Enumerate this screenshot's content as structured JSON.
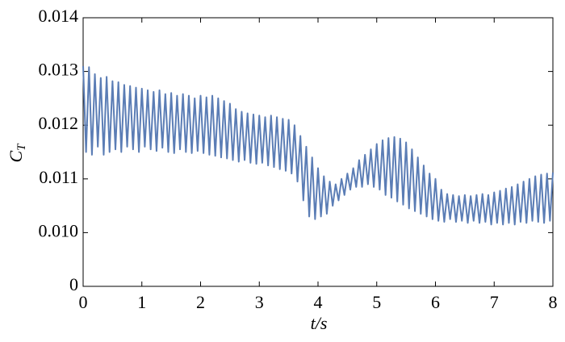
{
  "chart_data": {
    "type": "line",
    "ylabel": "C",
    "ylabel_subscript": "T",
    "xlabel": "t/s",
    "xlim": [
      0,
      8
    ],
    "xticks": [
      0,
      1,
      2,
      3,
      4,
      5,
      6,
      7,
      8
    ],
    "ylim": [
      0,
      0.014
    ],
    "yticks": [
      0,
      {
        "value": 0.01,
        "label": "0.010"
      },
      0.011,
      0.012,
      0.013,
      0.014
    ],
    "grid": false,
    "x": [
      0,
      0.05,
      0.1,
      0.15,
      0.2,
      0.25,
      0.3,
      0.35,
      0.4,
      0.45,
      0.5,
      0.55,
      0.6,
      0.65,
      0.7,
      0.75,
      0.8,
      0.85,
      0.9,
      0.95,
      1,
      1.05,
      1.1,
      1.15,
      1.2,
      1.25,
      1.3,
      1.35,
      1.4,
      1.45,
      1.5,
      1.55,
      1.6,
      1.65,
      1.7,
      1.75,
      1.8,
      1.85,
      1.9,
      1.95,
      2,
      2.05,
      2.1,
      2.15,
      2.2,
      2.25,
      2.3,
      2.35,
      2.4,
      2.45,
      2.5,
      2.55,
      2.6,
      2.65,
      2.7,
      2.75,
      2.8,
      2.85,
      2.9,
      2.95,
      3,
      3.05,
      3.1,
      3.15,
      3.2,
      3.25,
      3.3,
      3.35,
      3.4,
      3.45,
      3.5,
      3.55,
      3.6,
      3.65,
      3.7,
      3.75,
      3.8,
      3.85,
      3.9,
      3.95,
      4,
      4.05,
      4.1,
      4.15,
      4.2,
      4.25,
      4.3,
      4.35,
      4.4,
      4.45,
      4.5,
      4.55,
      4.6,
      4.65,
      4.7,
      4.75,
      4.8,
      4.85,
      4.9,
      4.95,
      5,
      5.05,
      5.1,
      5.15,
      5.2,
      5.25,
      5.3,
      5.35,
      5.4,
      5.45,
      5.5,
      5.55,
      5.6,
      5.65,
      5.7,
      5.75,
      5.8,
      5.85,
      5.9,
      5.95,
      6,
      6.05,
      6.1,
      6.15,
      6.2,
      6.25,
      6.3,
      6.35,
      6.4,
      6.45,
      6.5,
      6.55,
      6.6,
      6.65,
      6.7,
      6.75,
      6.8,
      6.85,
      6.9,
      6.95,
      7,
      7.05,
      7.1,
      7.15,
      7.2,
      7.25,
      7.3,
      7.35,
      7.4,
      7.45,
      7.5,
      7.55,
      7.6,
      7.65,
      7.7,
      7.75,
      7.8,
      7.85,
      7.9,
      7.95,
      8
    ],
    "series": [
      {
        "color": "#5b7db5",
        "values": [
          0.0131,
          0.0115,
          0.01308,
          0.01145,
          0.01295,
          0.0116,
          0.01288,
          0.01145,
          0.0129,
          0.0115,
          0.01282,
          0.01155,
          0.0128,
          0.0115,
          0.01275,
          0.0116,
          0.01273,
          0.01155,
          0.0127,
          0.0115,
          0.01268,
          0.0116,
          0.01265,
          0.01155,
          0.01262,
          0.01152,
          0.01265,
          0.01158,
          0.01258,
          0.0115,
          0.0126,
          0.01148,
          0.01255,
          0.01155,
          0.01258,
          0.0115,
          0.01255,
          0.01148,
          0.0125,
          0.01152,
          0.01255,
          0.01148,
          0.01252,
          0.01145,
          0.01255,
          0.01143,
          0.0125,
          0.0114,
          0.01245,
          0.01138,
          0.0124,
          0.01135,
          0.0123,
          0.01132,
          0.01225,
          0.01135,
          0.01222,
          0.0113,
          0.0122,
          0.01128,
          0.01218,
          0.0113,
          0.01215,
          0.01125,
          0.01218,
          0.01122,
          0.01215,
          0.01118,
          0.01212,
          0.01115,
          0.0121,
          0.0111,
          0.012,
          0.01095,
          0.0118,
          0.0106,
          0.0116,
          0.0103,
          0.0114,
          0.01025,
          0.0112,
          0.0103,
          0.01105,
          0.01035,
          0.01095,
          0.0105,
          0.0109,
          0.0106,
          0.011,
          0.0107,
          0.0111,
          0.0108,
          0.0112,
          0.01085,
          0.01135,
          0.01085,
          0.01145,
          0.0109,
          0.01155,
          0.01085,
          0.01165,
          0.0108,
          0.01172,
          0.0107,
          0.01176,
          0.01065,
          0.01178,
          0.01058,
          0.01175,
          0.01052,
          0.01168,
          0.01045,
          0.01155,
          0.0104,
          0.0114,
          0.01035,
          0.01125,
          0.0103,
          0.0111,
          0.01025,
          0.011,
          0.01022,
          0.0108,
          0.0102,
          0.01072,
          0.01025,
          0.0107,
          0.0102,
          0.01068,
          0.01022,
          0.0107,
          0.01018,
          0.01068,
          0.01022,
          0.0107,
          0.01018,
          0.01072,
          0.0102,
          0.0107,
          0.01015,
          0.01075,
          0.01018,
          0.01078,
          0.01015,
          0.01082,
          0.01018,
          0.01085,
          0.01015,
          0.0109,
          0.0102,
          0.01095,
          0.01018,
          0.011,
          0.01022,
          0.01105,
          0.0102,
          0.01108,
          0.01018,
          0.0111,
          0.01022,
          0.01112
        ]
      }
    ]
  }
}
